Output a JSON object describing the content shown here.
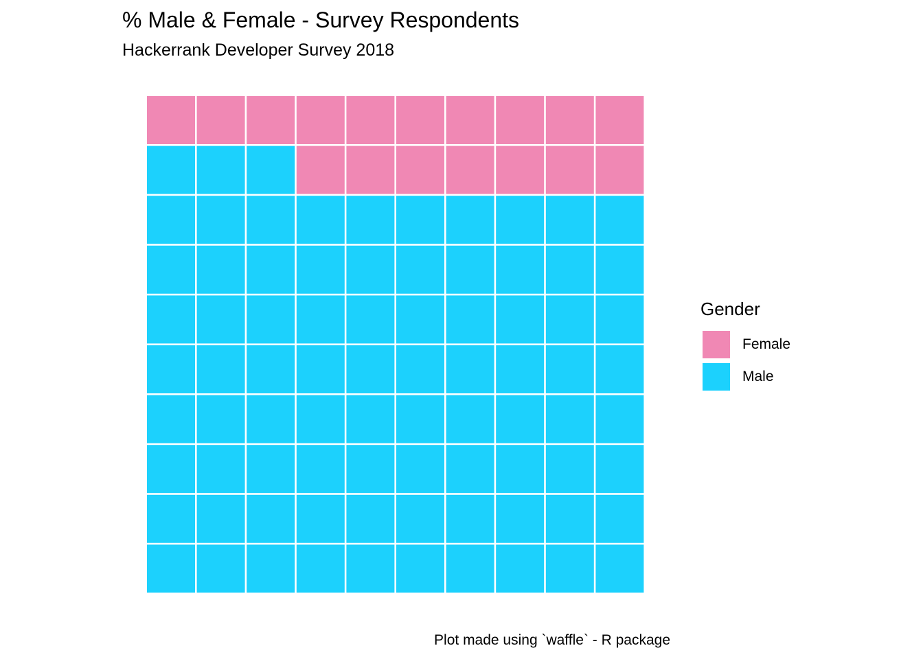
{
  "title": "% Male & Female - Survey Respondents",
  "subtitle": "Hackerrank Developer Survey 2018",
  "caption": "Plot made using `waffle` - R package",
  "legend": {
    "title": "Gender",
    "items": [
      {
        "label": "Female",
        "color": "#F088B4"
      },
      {
        "label": "Male",
        "color": "#1CD1FD"
      }
    ]
  },
  "chart_data": {
    "type": "waffle",
    "title": "% Male & Female - Survey Respondents",
    "subtitle": "Hackerrank Developer Survey 2018",
    "grid": {
      "rows": 10,
      "columns": 10
    },
    "fill_order": "row-wise from top-right",
    "categories": [
      "Female",
      "Male"
    ],
    "values": [
      17,
      83
    ],
    "colors": [
      "#F088B4",
      "#1CD1FD"
    ],
    "legend_title": "Gender",
    "legend_position": "right",
    "caption": "Plot made using `waffle` - R package"
  }
}
